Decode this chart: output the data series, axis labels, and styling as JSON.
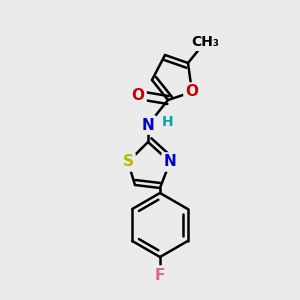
{
  "background_color": "#ebebeb",
  "atom_colors": {
    "C": "#000000",
    "N": "#0000cc",
    "O": "#cc0000",
    "S": "#b8b800",
    "F": "#e060a0",
    "H": "#00aaaa"
  },
  "bond_color": "#000000",
  "bond_width": 1.8,
  "font_size": 12
}
